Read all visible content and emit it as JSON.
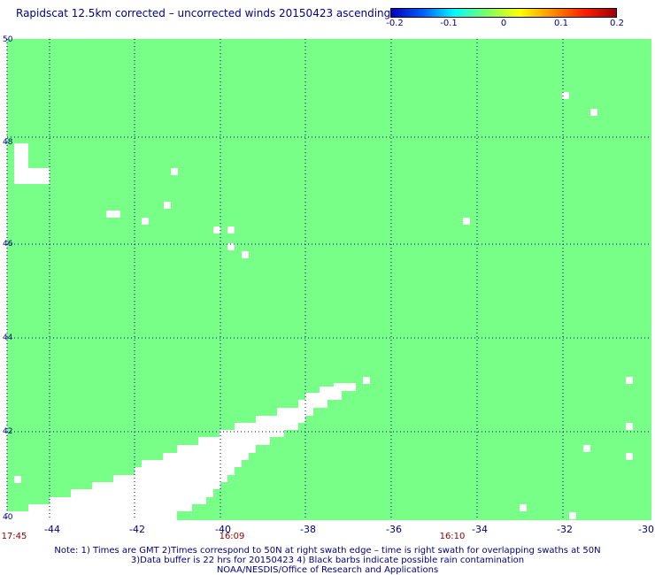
{
  "title": "Rapidscat 12.5km corrected – uncorrected winds 20150423 ascending",
  "colorbar": {
    "ticks": [
      "-0.2",
      "-0.1",
      "0",
      "0.1",
      "0.2"
    ],
    "values": [
      -0.2,
      -0.1,
      0,
      0.1,
      0.2
    ],
    "stops": [
      "#0000c0",
      "#0060ff",
      "#00ffff",
      "#80ff60",
      "#ffff00",
      "#ff9000",
      "#ff2000",
      "#a00000"
    ]
  },
  "map": {
    "lon_range": [
      -45,
      -30
    ],
    "lat_range": [
      40,
      50
    ],
    "lat_labels": [
      "50",
      "48",
      "46",
      "44",
      "42",
      "40"
    ],
    "lat_values": [
      50,
      48,
      46,
      44,
      42,
      40
    ],
    "lon_labels": [
      "-44",
      "-42",
      "-40",
      "-38",
      "-36",
      "-34",
      "-32",
      "-30"
    ],
    "lon_values": [
      -44,
      -42,
      -40,
      -38,
      -36,
      -34,
      -32,
      -30
    ],
    "field_color": "#77ff88",
    "nodata_color": "#ffffff",
    "grid_color": "#000080"
  },
  "times": [
    {
      "label": "17:45",
      "lon": -45
    },
    {
      "label": "16:09",
      "lon": -40
    },
    {
      "label": "16:10",
      "lon": -35
    }
  ],
  "notes": [
    "Note: 1) Times are GMT 2)Times correspond to 50N at right swath edge – time is right swath for overlapping swaths at 50N",
    "3)Data buffer is 22 hrs for 20150423 4) Black barbs indicate possible rain contamination",
    "NOAA/NESDIS/Office of Research and Applications"
  ]
}
